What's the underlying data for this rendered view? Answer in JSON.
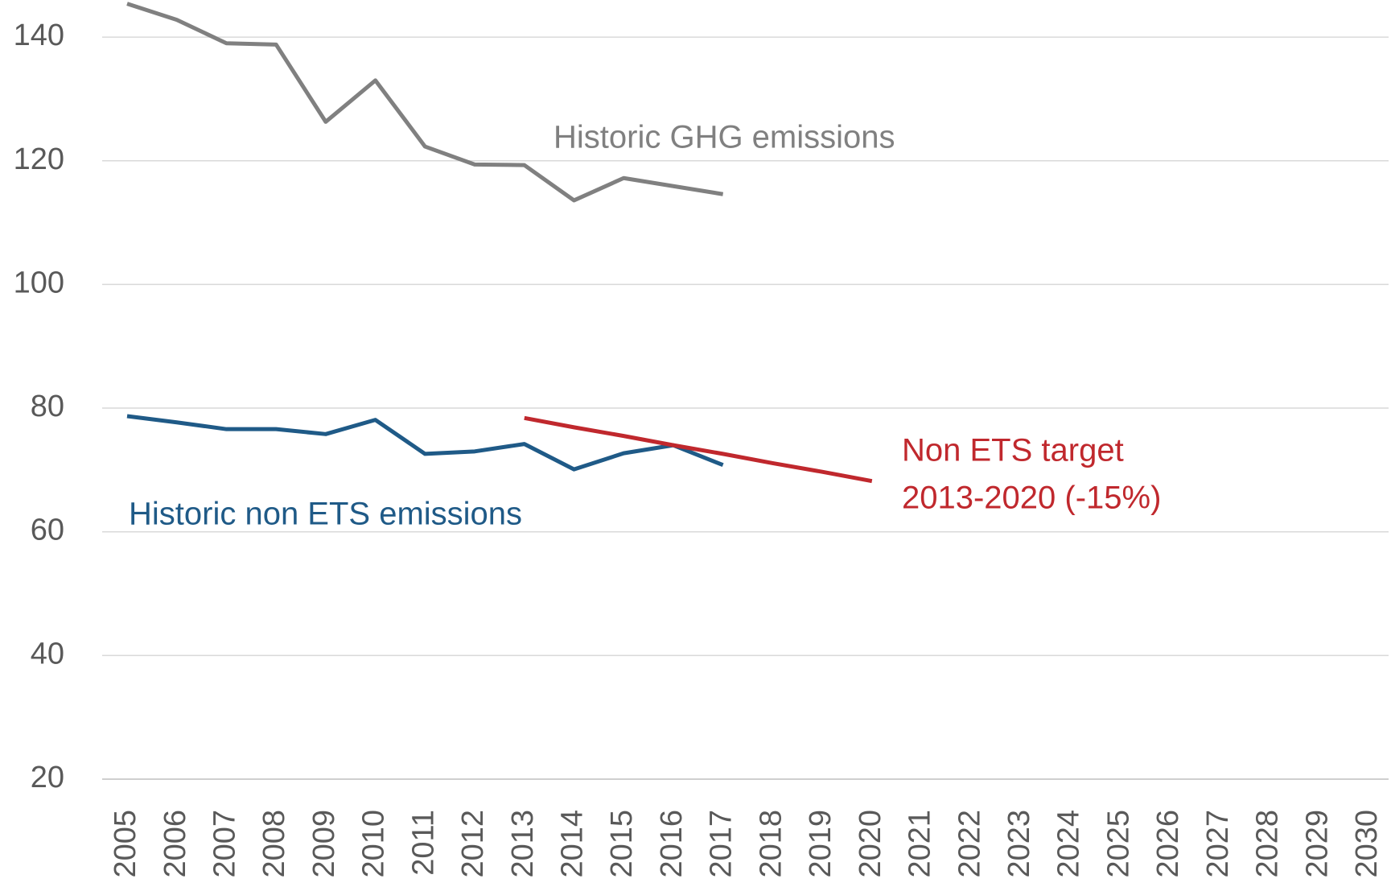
{
  "chart_data": {
    "type": "line",
    "categories": [
      "2005",
      "2006",
      "2007",
      "2008",
      "2009",
      "2010",
      "2011",
      "2012",
      "2013",
      "2014",
      "2015",
      "2016",
      "2017",
      "2018",
      "2019",
      "2020",
      "2021",
      "2022",
      "2023",
      "2024",
      "2025",
      "2026",
      "2027",
      "2028",
      "2029",
      "2030"
    ],
    "series": [
      {
        "name": "Historic GHG emissions",
        "color": "#808080",
        "values": [
          145.4,
          142.8,
          139,
          138.8,
          126.3,
          133,
          122.3,
          119.4,
          119.3,
          113.6,
          117.2,
          115.9,
          114.6,
          null,
          null,
          null,
          null,
          null,
          null,
          null,
          null,
          null,
          null,
          null,
          null,
          null
        ]
      },
      {
        "name": "Historic non ETS emissions",
        "color": "#1f5a87",
        "values": [
          78.7,
          77.7,
          76.6,
          76.6,
          75.8,
          78.1,
          72.6,
          73,
          74.2,
          70.1,
          72.7,
          74,
          70.8,
          null,
          null,
          null,
          null,
          null,
          null,
          null,
          null,
          null,
          null,
          null,
          null,
          null
        ]
      },
      {
        "name_lines": [
          "Non ETS target",
          "2013-2020 (-15%)"
        ],
        "color": "#c0282d",
        "values": [
          null,
          null,
          null,
          null,
          null,
          null,
          null,
          null,
          78.4,
          76.9,
          75.5,
          74,
          72.6,
          71.1,
          69.7,
          68.2,
          null,
          null,
          null,
          null,
          null,
          null,
          null,
          null,
          null,
          null
        ]
      }
    ],
    "ylim": [
      20,
      146
    ],
    "yticks": [
      20,
      40,
      60,
      80,
      100,
      120,
      140
    ],
    "grid": true
  }
}
